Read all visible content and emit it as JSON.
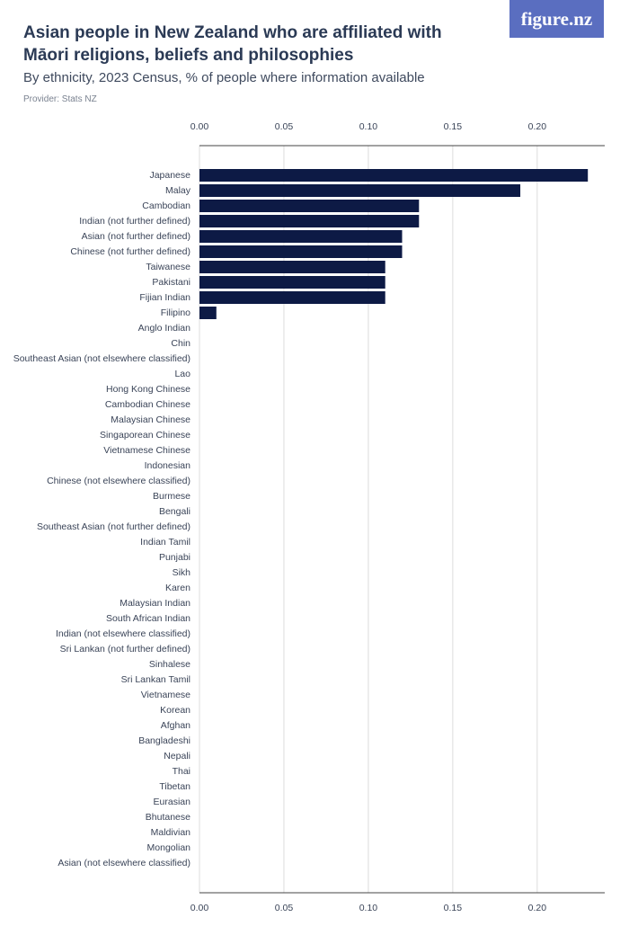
{
  "chart_data": {
    "type": "bar",
    "orientation": "horizontal",
    "title": "Asian people in New Zealand who are affiliated with Māori religions, beliefs and philosophies",
    "subtitle": "By ethnicity, 2023 Census, % of people where information available",
    "provider": "Provider: Stats NZ",
    "logo": "figure.nz",
    "color": "#0d1a45",
    "categories": [
      "Japanese",
      "Malay",
      "Cambodian",
      "Indian (not further defined)",
      "Asian (not further defined)",
      "Chinese (not further defined)",
      "Taiwanese",
      "Pakistani",
      "Fijian Indian",
      "Filipino",
      "Anglo Indian",
      "Chin",
      "Southeast Asian (not elsewhere classified)",
      "Lao",
      "Hong Kong Chinese",
      "Cambodian Chinese",
      "Malaysian Chinese",
      "Singaporean Chinese",
      "Vietnamese Chinese",
      "Indonesian",
      "Chinese (not elsewhere classified)",
      "Burmese",
      "Bengali",
      "Southeast Asian (not further defined)",
      "Indian Tamil",
      "Punjabi",
      "Sikh",
      "Karen",
      "Malaysian Indian",
      "South African Indian",
      "Indian (not elsewhere classified)",
      "Sri Lankan (not further defined)",
      "Sinhalese",
      "Sri Lankan Tamil",
      "Vietnamese",
      "Korean",
      "Afghan",
      "Bangladeshi",
      "Nepali",
      "Thai",
      "Tibetan",
      "Eurasian",
      "Bhutanese",
      "Maldivian",
      "Mongolian",
      "Asian (not elsewhere classified)"
    ],
    "values": [
      0.23,
      0.19,
      0.13,
      0.13,
      0.12,
      0.12,
      0.11,
      0.11,
      0.11,
      0.01,
      0,
      0,
      0,
      0,
      0,
      0,
      0,
      0,
      0,
      0,
      0,
      0,
      0,
      0,
      0,
      0,
      0,
      0,
      0,
      0,
      0,
      0,
      0,
      0,
      0,
      0,
      0,
      0,
      0,
      0,
      0,
      0,
      0,
      0,
      0,
      0
    ],
    "xlim": [
      0,
      0.24
    ],
    "xticks": [
      {
        "value": 0,
        "label": "0.00"
      },
      {
        "value": 0.05,
        "label": "0.05"
      },
      {
        "value": 0.1,
        "label": "0.10"
      },
      {
        "value": 0.15,
        "label": "0.15"
      },
      {
        "value": 0.2,
        "label": "0.20"
      }
    ],
    "grid": true
  }
}
